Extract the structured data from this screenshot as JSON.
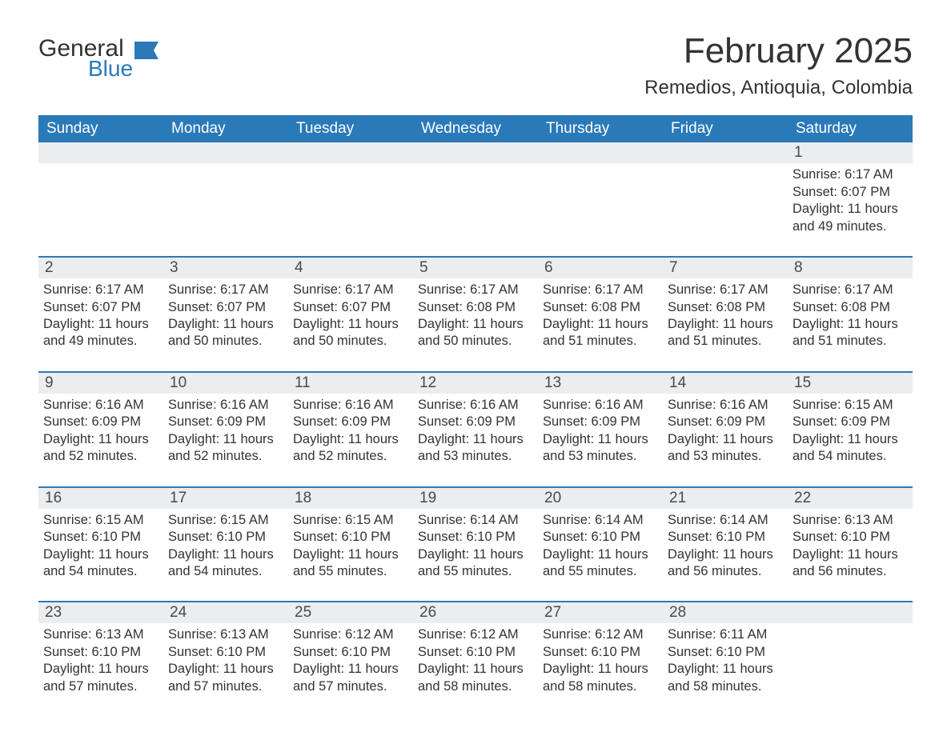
{
  "brand": {
    "line1": "General",
    "line2": "Blue"
  },
  "title": "February 2025",
  "location": "Remedios, Antioquia, Colombia",
  "colors": {
    "accent": "#2a7ab9",
    "header_text": "#ffffff",
    "daynum_bg": "#ecedef",
    "text": "#333333",
    "background": "#ffffff"
  },
  "weekdays": [
    "Sunday",
    "Monday",
    "Tuesday",
    "Wednesday",
    "Thursday",
    "Friday",
    "Saturday"
  ],
  "weeks": [
    [
      null,
      null,
      null,
      null,
      null,
      null,
      {
        "n": "1",
        "sr": "Sunrise: 6:17 AM",
        "ss": "Sunset: 6:07 PM",
        "dl": "Daylight: 11 hours and 49 minutes."
      }
    ],
    [
      {
        "n": "2",
        "sr": "Sunrise: 6:17 AM",
        "ss": "Sunset: 6:07 PM",
        "dl": "Daylight: 11 hours and 49 minutes."
      },
      {
        "n": "3",
        "sr": "Sunrise: 6:17 AM",
        "ss": "Sunset: 6:07 PM",
        "dl": "Daylight: 11 hours and 50 minutes."
      },
      {
        "n": "4",
        "sr": "Sunrise: 6:17 AM",
        "ss": "Sunset: 6:07 PM",
        "dl": "Daylight: 11 hours and 50 minutes."
      },
      {
        "n": "5",
        "sr": "Sunrise: 6:17 AM",
        "ss": "Sunset: 6:08 PM",
        "dl": "Daylight: 11 hours and 50 minutes."
      },
      {
        "n": "6",
        "sr": "Sunrise: 6:17 AM",
        "ss": "Sunset: 6:08 PM",
        "dl": "Daylight: 11 hours and 51 minutes."
      },
      {
        "n": "7",
        "sr": "Sunrise: 6:17 AM",
        "ss": "Sunset: 6:08 PM",
        "dl": "Daylight: 11 hours and 51 minutes."
      },
      {
        "n": "8",
        "sr": "Sunrise: 6:17 AM",
        "ss": "Sunset: 6:08 PM",
        "dl": "Daylight: 11 hours and 51 minutes."
      }
    ],
    [
      {
        "n": "9",
        "sr": "Sunrise: 6:16 AM",
        "ss": "Sunset: 6:09 PM",
        "dl": "Daylight: 11 hours and 52 minutes."
      },
      {
        "n": "10",
        "sr": "Sunrise: 6:16 AM",
        "ss": "Sunset: 6:09 PM",
        "dl": "Daylight: 11 hours and 52 minutes."
      },
      {
        "n": "11",
        "sr": "Sunrise: 6:16 AM",
        "ss": "Sunset: 6:09 PM",
        "dl": "Daylight: 11 hours and 52 minutes."
      },
      {
        "n": "12",
        "sr": "Sunrise: 6:16 AM",
        "ss": "Sunset: 6:09 PM",
        "dl": "Daylight: 11 hours and 53 minutes."
      },
      {
        "n": "13",
        "sr": "Sunrise: 6:16 AM",
        "ss": "Sunset: 6:09 PM",
        "dl": "Daylight: 11 hours and 53 minutes."
      },
      {
        "n": "14",
        "sr": "Sunrise: 6:16 AM",
        "ss": "Sunset: 6:09 PM",
        "dl": "Daylight: 11 hours and 53 minutes."
      },
      {
        "n": "15",
        "sr": "Sunrise: 6:15 AM",
        "ss": "Sunset: 6:09 PM",
        "dl": "Daylight: 11 hours and 54 minutes."
      }
    ],
    [
      {
        "n": "16",
        "sr": "Sunrise: 6:15 AM",
        "ss": "Sunset: 6:10 PM",
        "dl": "Daylight: 11 hours and 54 minutes."
      },
      {
        "n": "17",
        "sr": "Sunrise: 6:15 AM",
        "ss": "Sunset: 6:10 PM",
        "dl": "Daylight: 11 hours and 54 minutes."
      },
      {
        "n": "18",
        "sr": "Sunrise: 6:15 AM",
        "ss": "Sunset: 6:10 PM",
        "dl": "Daylight: 11 hours and 55 minutes."
      },
      {
        "n": "19",
        "sr": "Sunrise: 6:14 AM",
        "ss": "Sunset: 6:10 PM",
        "dl": "Daylight: 11 hours and 55 minutes."
      },
      {
        "n": "20",
        "sr": "Sunrise: 6:14 AM",
        "ss": "Sunset: 6:10 PM",
        "dl": "Daylight: 11 hours and 55 minutes."
      },
      {
        "n": "21",
        "sr": "Sunrise: 6:14 AM",
        "ss": "Sunset: 6:10 PM",
        "dl": "Daylight: 11 hours and 56 minutes."
      },
      {
        "n": "22",
        "sr": "Sunrise: 6:13 AM",
        "ss": "Sunset: 6:10 PM",
        "dl": "Daylight: 11 hours and 56 minutes."
      }
    ],
    [
      {
        "n": "23",
        "sr": "Sunrise: 6:13 AM",
        "ss": "Sunset: 6:10 PM",
        "dl": "Daylight: 11 hours and 57 minutes."
      },
      {
        "n": "24",
        "sr": "Sunrise: 6:13 AM",
        "ss": "Sunset: 6:10 PM",
        "dl": "Daylight: 11 hours and 57 minutes."
      },
      {
        "n": "25",
        "sr": "Sunrise: 6:12 AM",
        "ss": "Sunset: 6:10 PM",
        "dl": "Daylight: 11 hours and 57 minutes."
      },
      {
        "n": "26",
        "sr": "Sunrise: 6:12 AM",
        "ss": "Sunset: 6:10 PM",
        "dl": "Daylight: 11 hours and 58 minutes."
      },
      {
        "n": "27",
        "sr": "Sunrise: 6:12 AM",
        "ss": "Sunset: 6:10 PM",
        "dl": "Daylight: 11 hours and 58 minutes."
      },
      {
        "n": "28",
        "sr": "Sunrise: 6:11 AM",
        "ss": "Sunset: 6:10 PM",
        "dl": "Daylight: 11 hours and 58 minutes."
      },
      null
    ]
  ]
}
